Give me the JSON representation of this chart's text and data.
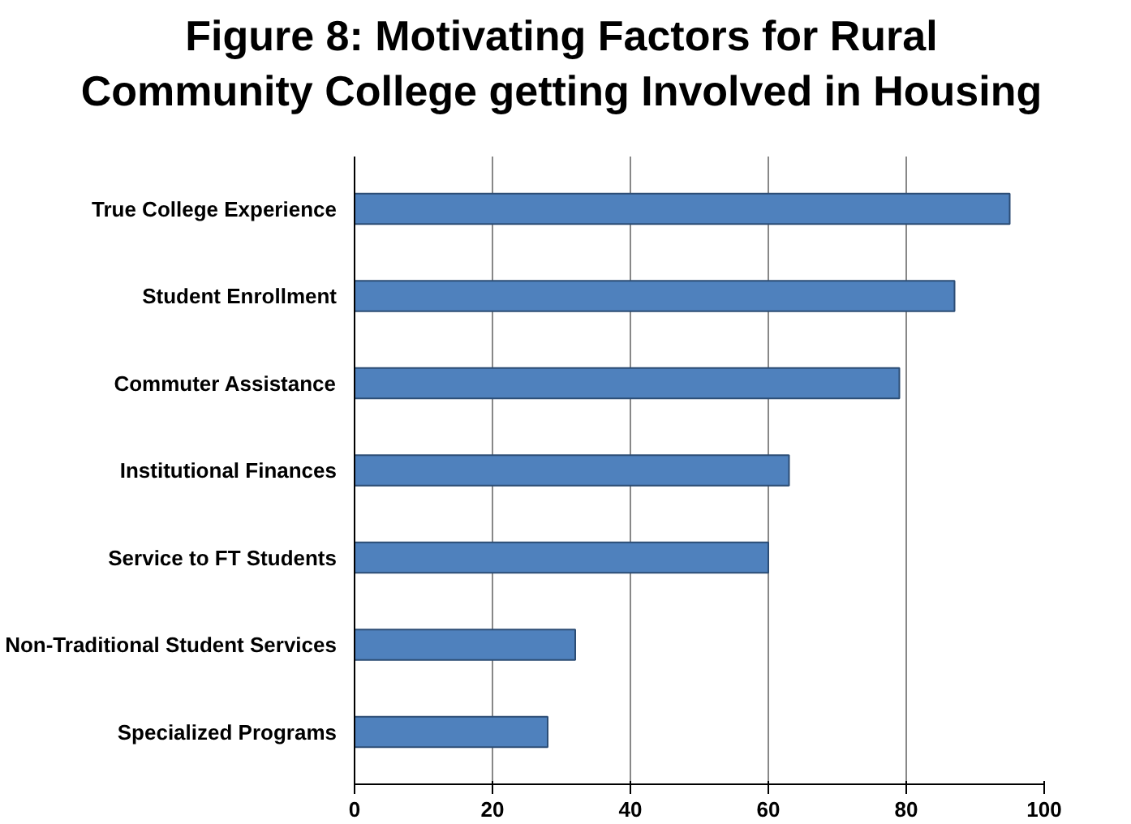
{
  "chart_data": {
    "type": "bar",
    "orientation": "horizontal",
    "title": "Figure 8: Motivating Factors for Rural Community College getting Involved in Housing",
    "categories": [
      "True College Experience",
      "Student Enrollment",
      "Commuter Assistance",
      "Institutional Finances",
      "Service to FT Students",
      "Non-Traditional Student Services",
      "Specialized Programs"
    ],
    "values": [
      95,
      87,
      79,
      63,
      60,
      32,
      28
    ],
    "color": "#4f81bd",
    "xlim": [
      0,
      100
    ],
    "xticks": [
      0,
      20,
      40,
      60,
      80,
      100
    ],
    "grid": "x"
  }
}
